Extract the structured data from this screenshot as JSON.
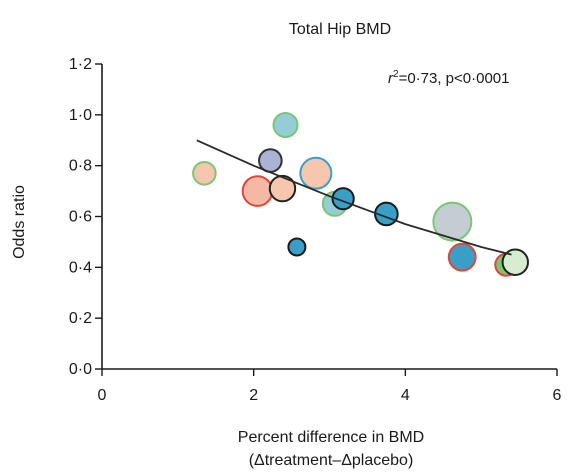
{
  "chart_data": {
    "type": "scatter",
    "title": "Total Hip BMD",
    "xlabel": "Percent difference in BMD",
    "xlabel_line2": "(Δtreatment–Δplacebo)",
    "ylabel": "Odds ratio",
    "xlim": [
      0,
      6
    ],
    "ylim": [
      0,
      1.2
    ],
    "x_ticks": [
      {
        "value": 0,
        "label": "0"
      },
      {
        "value": 2,
        "label": "2"
      },
      {
        "value": 4,
        "label": "4"
      },
      {
        "value": 6,
        "label": "6"
      }
    ],
    "y_ticks": [
      {
        "value": 0.0,
        "label": "0·0"
      },
      {
        "value": 0.2,
        "label": "0·2"
      },
      {
        "value": 0.4,
        "label": "0·4"
      },
      {
        "value": 0.6,
        "label": "0·6"
      },
      {
        "value": 0.8,
        "label": "0·8"
      },
      {
        "value": 1.0,
        "label": "1·0"
      },
      {
        "value": 1.2,
        "label": "1·2"
      }
    ],
    "annotation": {
      "r2_prefix": "r",
      "r2_sup": "2",
      "r2_rest": "=0·73, p<0·0001"
    },
    "grid": false,
    "points": [
      {
        "x": 1.35,
        "y": 0.77,
        "size": 0.45,
        "fill": "#f7c6ae",
        "stroke": "#7cc576"
      },
      {
        "x": 2.05,
        "y": 0.7,
        "size": 0.7,
        "fill": "#f4b8a4",
        "stroke": "#e0453a"
      },
      {
        "x": 2.22,
        "y": 0.82,
        "size": 0.45,
        "fill": "#a9b3d6",
        "stroke": "#333333"
      },
      {
        "x": 2.38,
        "y": 0.71,
        "size": 0.55,
        "fill": "#f7c6ae",
        "stroke": "#222222"
      },
      {
        "x": 2.42,
        "y": 0.96,
        "size": 0.5,
        "fill": "#94cdd6",
        "stroke": "#7cc576"
      },
      {
        "x": 2.57,
        "y": 0.48,
        "size": 0.25,
        "fill": "#3a9fc6",
        "stroke": "#1a1a1a"
      },
      {
        "x": 2.82,
        "y": 0.77,
        "size": 0.75,
        "fill": "#f7c6ae",
        "stroke": "#3a9fc6"
      },
      {
        "x": 3.07,
        "y": 0.65,
        "size": 0.5,
        "fill": "#94cdd6",
        "stroke": "#7cc576"
      },
      {
        "x": 3.18,
        "y": 0.67,
        "size": 0.4,
        "fill": "#3a9fc6",
        "stroke": "#1a1a1a"
      },
      {
        "x": 3.75,
        "y": 0.61,
        "size": 0.45,
        "fill": "#3a9fc6",
        "stroke": "#1a1a1a"
      },
      {
        "x": 4.62,
        "y": 0.58,
        "size": 1.0,
        "fill": "#c3cdd3",
        "stroke": "#7cc576"
      },
      {
        "x": 4.75,
        "y": 0.44,
        "size": 0.6,
        "fill": "#3a9fc6",
        "stroke": "#e0453a"
      },
      {
        "x": 5.33,
        "y": 0.41,
        "size": 0.42,
        "fill": "#7cc576",
        "stroke": "#e0453a"
      },
      {
        "x": 5.45,
        "y": 0.42,
        "size": 0.55,
        "fill": "#d8ecd2",
        "stroke": "#222222"
      }
    ],
    "fit_line": [
      {
        "x": 1.25,
        "y": 0.9
      },
      {
        "x": 2.0,
        "y": 0.8
      },
      {
        "x": 3.0,
        "y": 0.68
      },
      {
        "x": 4.0,
        "y": 0.57
      },
      {
        "x": 5.0,
        "y": 0.48
      },
      {
        "x": 5.4,
        "y": 0.45
      }
    ]
  }
}
